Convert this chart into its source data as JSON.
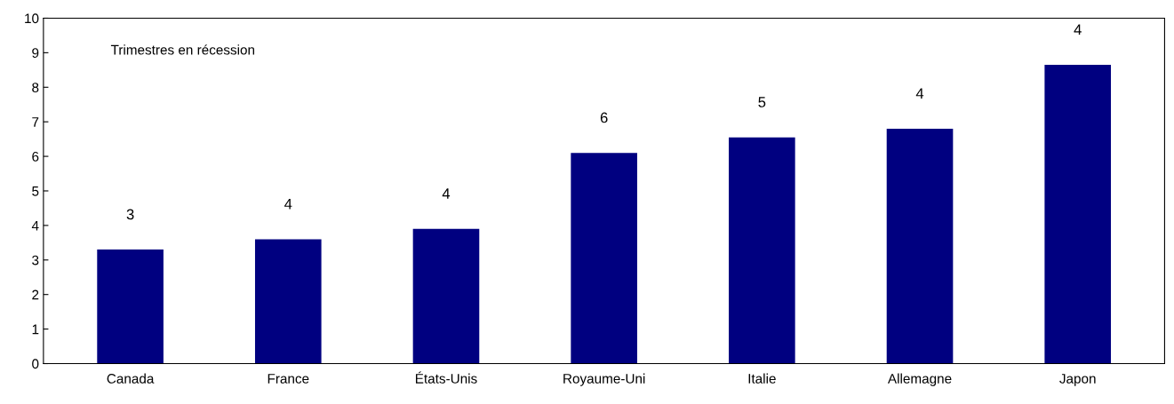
{
  "chart_data": {
    "type": "bar",
    "categories": [
      "Canada",
      "France",
      "États-Unis",
      "Royaume-Uni",
      "Italie",
      "Allemagne",
      "Japon"
    ],
    "values": [
      3.3,
      3.6,
      3.9,
      6.1,
      6.55,
      6.8,
      8.65
    ],
    "color": "#000080",
    "ylim": [
      0,
      10
    ],
    "yticks": [
      0,
      1,
      2,
      3,
      4,
      5,
      6,
      7,
      8,
      9,
      10
    ],
    "annotations": [
      "Trimestres en récession",
      {
        "text": "3",
        "x": "Canada",
        "y": 3.3
      },
      {
        "text": "4",
        "x": "France",
        "y": 3.6
      },
      {
        "text": "4",
        "x": "États-Unis",
        "y": 3.9
      },
      {
        "text": "6",
        "x": "Royaume-Uni",
        "y": 6.1
      },
      {
        "text": "5",
        "x": "Italie",
        "y": 6.55
      },
      {
        "text": "4",
        "x": "Allemagne",
        "y": 6.8
      },
      {
        "text": "4",
        "x": "Japon",
        "y": 8.65
      }
    ],
    "grid": false,
    "legend": false
  }
}
